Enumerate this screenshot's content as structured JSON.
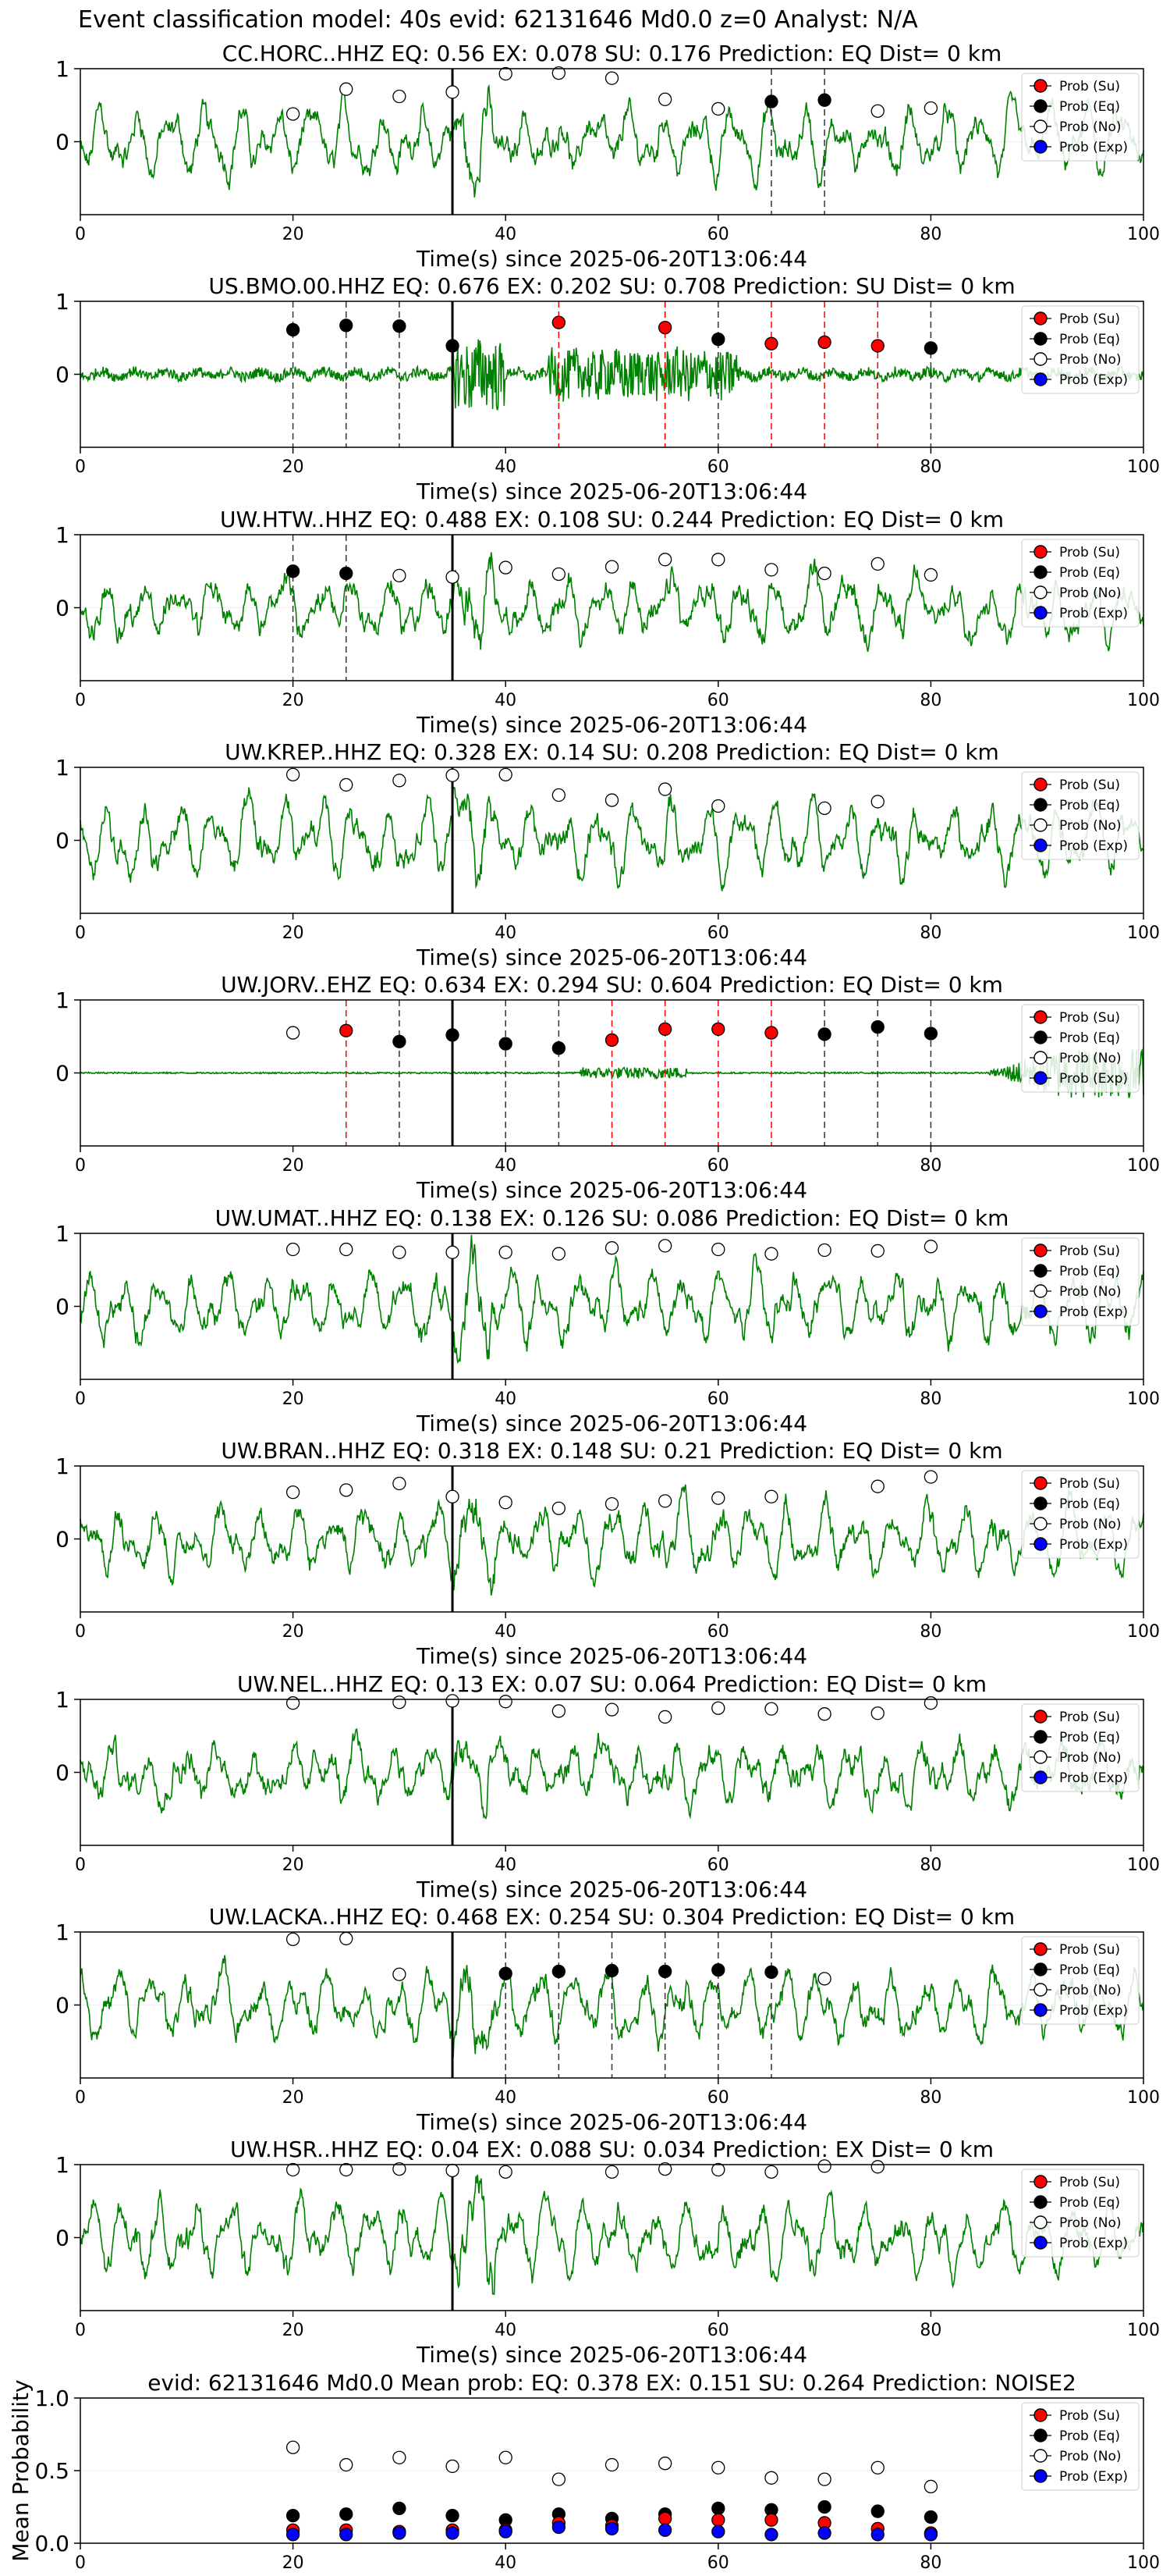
{
  "suptitle": "Event classification model: 40s evid: 62131646 Md0.0 z=0 Analyst: N/A",
  "xlabel": "Time(s) since 2025-06-20T13:06:44",
  "mean_ylabel": "Mean Probability",
  "legend": [
    "Prob (Su)",
    "Prob (Eq)",
    "Prob (No)",
    "Prob (Exp)"
  ],
  "colors": {
    "trace": "#008000",
    "su": "#ff0000",
    "eq": "#000000",
    "no": "#ffffff",
    "exp": "#0000ff",
    "eq_line": "#333333",
    "su_line": "#ff0000"
  },
  "chart_data": [
    {
      "type": "line",
      "title": "CC.HORC..HHZ   EQ: 0.56  EX: 0.078  SU: 0.176   Prediction: EQ    Dist= 0 km",
      "xlim": [
        0,
        100
      ],
      "ylim": [
        -1,
        1
      ],
      "yticks": [
        0,
        1
      ],
      "xticks": [
        0,
        20,
        40,
        60,
        80,
        100
      ],
      "arrival": 35,
      "style": "noise",
      "amp": 0.5,
      "eq_lines": [
        65,
        70
      ],
      "su_lines": [],
      "markers": [
        {
          "x": 20,
          "y": 0.38,
          "cls": "no"
        },
        {
          "x": 25,
          "y": 0.72,
          "cls": "no"
        },
        {
          "x": 30,
          "y": 0.62,
          "cls": "no"
        },
        {
          "x": 35,
          "y": 0.68,
          "cls": "no"
        },
        {
          "x": 40,
          "y": 0.93,
          "cls": "no"
        },
        {
          "x": 45,
          "y": 0.94,
          "cls": "no"
        },
        {
          "x": 50,
          "y": 0.87,
          "cls": "no"
        },
        {
          "x": 55,
          "y": 0.58,
          "cls": "no"
        },
        {
          "x": 60,
          "y": 0.45,
          "cls": "no"
        },
        {
          "x": 65,
          "y": 0.55,
          "cls": "eq"
        },
        {
          "x": 70,
          "y": 0.57,
          "cls": "eq"
        },
        {
          "x": 75,
          "y": 0.42,
          "cls": "no"
        },
        {
          "x": 80,
          "y": 0.46,
          "cls": "no"
        }
      ]
    },
    {
      "type": "line",
      "title": "US.BMO.00.HHZ   EQ: 0.676  EX: 0.202  SU: 0.708   Prediction: SU    Dist= 0 km",
      "xlim": [
        0,
        100
      ],
      "ylim": [
        -1,
        1
      ],
      "yticks": [
        0,
        1
      ],
      "xticks": [
        0,
        20,
        40,
        60,
        80,
        100
      ],
      "arrival": 35,
      "style": "quiet",
      "amp": 0.12,
      "eq_lines": [
        20,
        25,
        30,
        55,
        60,
        80
      ],
      "su_lines": [
        45,
        55,
        65,
        70,
        75
      ],
      "markers": [
        {
          "x": 20,
          "y": 0.61,
          "cls": "eq"
        },
        {
          "x": 25,
          "y": 0.67,
          "cls": "eq"
        },
        {
          "x": 30,
          "y": 0.66,
          "cls": "eq"
        },
        {
          "x": 35,
          "y": 0.39,
          "cls": "eq"
        },
        {
          "x": 45,
          "y": 0.71,
          "cls": "su"
        },
        {
          "x": 55,
          "y": 0.64,
          "cls": "su"
        },
        {
          "x": 60,
          "y": 0.48,
          "cls": "eq"
        },
        {
          "x": 65,
          "y": 0.42,
          "cls": "su"
        },
        {
          "x": 70,
          "y": 0.44,
          "cls": "su"
        },
        {
          "x": 75,
          "y": 0.39,
          "cls": "su"
        },
        {
          "x": 80,
          "y": 0.36,
          "cls": "eq"
        }
      ]
    },
    {
      "type": "line",
      "title": "UW.HTW..HHZ   EQ: 0.488  EX: 0.108  SU: 0.244   Prediction: EQ    Dist= 0 km",
      "xlim": [
        0,
        100
      ],
      "ylim": [
        -1,
        1
      ],
      "yticks": [
        0,
        1
      ],
      "xticks": [
        0,
        20,
        40,
        60,
        80,
        100
      ],
      "arrival": 35,
      "style": "noise",
      "amp": 0.45,
      "eq_lines": [
        20,
        25
      ],
      "su_lines": [],
      "markers": [
        {
          "x": 20,
          "y": 0.5,
          "cls": "eq"
        },
        {
          "x": 25,
          "y": 0.47,
          "cls": "eq"
        },
        {
          "x": 30,
          "y": 0.44,
          "cls": "no"
        },
        {
          "x": 35,
          "y": 0.42,
          "cls": "no"
        },
        {
          "x": 40,
          "y": 0.55,
          "cls": "no"
        },
        {
          "x": 45,
          "y": 0.46,
          "cls": "no"
        },
        {
          "x": 50,
          "y": 0.56,
          "cls": "no"
        },
        {
          "x": 55,
          "y": 0.66,
          "cls": "no"
        },
        {
          "x": 60,
          "y": 0.66,
          "cls": "no"
        },
        {
          "x": 65,
          "y": 0.52,
          "cls": "no"
        },
        {
          "x": 70,
          "y": 0.47,
          "cls": "no"
        },
        {
          "x": 75,
          "y": 0.6,
          "cls": "no"
        },
        {
          "x": 80,
          "y": 0.45,
          "cls": "no"
        }
      ]
    },
    {
      "type": "line",
      "title": "UW.KREP..HHZ   EQ: 0.328  EX: 0.14  SU: 0.208   Prediction: EQ    Dist= 0 km",
      "xlim": [
        0,
        100
      ],
      "ylim": [
        -1,
        1
      ],
      "yticks": [
        0,
        1
      ],
      "xticks": [
        0,
        20,
        40,
        60,
        80,
        100
      ],
      "arrival": 35,
      "style": "noise",
      "amp": 0.55,
      "eq_lines": [],
      "su_lines": [],
      "markers": [
        {
          "x": 20,
          "y": 0.9,
          "cls": "no"
        },
        {
          "x": 25,
          "y": 0.76,
          "cls": "no"
        },
        {
          "x": 30,
          "y": 0.82,
          "cls": "no"
        },
        {
          "x": 35,
          "y": 0.89,
          "cls": "no"
        },
        {
          "x": 40,
          "y": 0.9,
          "cls": "no"
        },
        {
          "x": 45,
          "y": 0.62,
          "cls": "no"
        },
        {
          "x": 50,
          "y": 0.55,
          "cls": "no"
        },
        {
          "x": 55,
          "y": 0.7,
          "cls": "no"
        },
        {
          "x": 60,
          "y": 0.47,
          "cls": "no"
        },
        {
          "x": 70,
          "y": 0.44,
          "cls": "no"
        },
        {
          "x": 75,
          "y": 0.53,
          "cls": "no"
        }
      ]
    },
    {
      "type": "line",
      "title": "UW.JORV..EHZ   EQ: 0.634  EX: 0.294  SU: 0.604   Prediction: EQ    Dist= 0 km",
      "xlim": [
        0,
        100
      ],
      "ylim": [
        -1,
        1
      ],
      "yticks": [
        0,
        1
      ],
      "xticks": [
        0,
        20,
        40,
        60,
        80,
        100
      ],
      "arrival": 35,
      "style": "flat",
      "amp": 0.02,
      "eq_lines": [
        30,
        40,
        45,
        70,
        75,
        80
      ],
      "su_lines": [
        25,
        50,
        55,
        60,
        65
      ],
      "markers": [
        {
          "x": 20,
          "y": 0.55,
          "cls": "no"
        },
        {
          "x": 25,
          "y": 0.58,
          "cls": "su"
        },
        {
          "x": 30,
          "y": 0.43,
          "cls": "eq"
        },
        {
          "x": 35,
          "y": 0.52,
          "cls": "eq"
        },
        {
          "x": 40,
          "y": 0.4,
          "cls": "eq"
        },
        {
          "x": 45,
          "y": 0.34,
          "cls": "eq"
        },
        {
          "x": 50,
          "y": 0.45,
          "cls": "su"
        },
        {
          "x": 55,
          "y": 0.6,
          "cls": "su"
        },
        {
          "x": 60,
          "y": 0.6,
          "cls": "su"
        },
        {
          "x": 65,
          "y": 0.55,
          "cls": "su"
        },
        {
          "x": 70,
          "y": 0.53,
          "cls": "eq"
        },
        {
          "x": 75,
          "y": 0.63,
          "cls": "eq"
        },
        {
          "x": 80,
          "y": 0.54,
          "cls": "eq"
        }
      ]
    },
    {
      "type": "line",
      "title": "UW.UMAT..HHZ   EQ: 0.138  EX: 0.126  SU: 0.086   Prediction: EQ    Dist= 0 km",
      "xlim": [
        0,
        100
      ],
      "ylim": [
        -1,
        1
      ],
      "yticks": [
        0,
        1
      ],
      "xticks": [
        0,
        20,
        40,
        60,
        80,
        100
      ],
      "arrival": 35,
      "style": "noise",
      "amp": 0.5,
      "eq_lines": [],
      "su_lines": [],
      "markers": [
        {
          "x": 20,
          "y": 0.78,
          "cls": "no"
        },
        {
          "x": 25,
          "y": 0.78,
          "cls": "no"
        },
        {
          "x": 30,
          "y": 0.74,
          "cls": "no"
        },
        {
          "x": 35,
          "y": 0.74,
          "cls": "no"
        },
        {
          "x": 40,
          "y": 0.74,
          "cls": "no"
        },
        {
          "x": 45,
          "y": 0.72,
          "cls": "no"
        },
        {
          "x": 50,
          "y": 0.8,
          "cls": "no"
        },
        {
          "x": 55,
          "y": 0.83,
          "cls": "no"
        },
        {
          "x": 60,
          "y": 0.78,
          "cls": "no"
        },
        {
          "x": 65,
          "y": 0.72,
          "cls": "no"
        },
        {
          "x": 70,
          "y": 0.77,
          "cls": "no"
        },
        {
          "x": 75,
          "y": 0.76,
          "cls": "no"
        },
        {
          "x": 80,
          "y": 0.82,
          "cls": "no"
        }
      ]
    },
    {
      "type": "line",
      "title": "UW.BRAN..HHZ   EQ: 0.318  EX: 0.148  SU: 0.21   Prediction: EQ    Dist= 0 km",
      "xlim": [
        0,
        100
      ],
      "ylim": [
        -1,
        1
      ],
      "yticks": [
        0,
        1
      ],
      "xticks": [
        0,
        20,
        40,
        60,
        80,
        100
      ],
      "arrival": 35,
      "style": "noise",
      "amp": 0.5,
      "eq_lines": [],
      "su_lines": [],
      "markers": [
        {
          "x": 20,
          "y": 0.64,
          "cls": "no"
        },
        {
          "x": 25,
          "y": 0.67,
          "cls": "no"
        },
        {
          "x": 30,
          "y": 0.76,
          "cls": "no"
        },
        {
          "x": 35,
          "y": 0.58,
          "cls": "no"
        },
        {
          "x": 40,
          "y": 0.5,
          "cls": "no"
        },
        {
          "x": 45,
          "y": 0.42,
          "cls": "no"
        },
        {
          "x": 50,
          "y": 0.48,
          "cls": "no"
        },
        {
          "x": 55,
          "y": 0.52,
          "cls": "no"
        },
        {
          "x": 60,
          "y": 0.56,
          "cls": "no"
        },
        {
          "x": 65,
          "y": 0.58,
          "cls": "no"
        },
        {
          "x": 75,
          "y": 0.72,
          "cls": "no"
        },
        {
          "x": 80,
          "y": 0.85,
          "cls": "no"
        }
      ]
    },
    {
      "type": "line",
      "title": "UW.NEL..HHZ   EQ: 0.13  EX: 0.07  SU: 0.064   Prediction: EQ    Dist= 0 km",
      "xlim": [
        0,
        100
      ],
      "ylim": [
        -1,
        1
      ],
      "yticks": [
        0,
        1
      ],
      "xticks": [
        0,
        20,
        40,
        60,
        80,
        100
      ],
      "arrival": 35,
      "style": "noise",
      "amp": 0.42,
      "eq_lines": [],
      "su_lines": [],
      "markers": [
        {
          "x": 20,
          "y": 0.95,
          "cls": "no"
        },
        {
          "x": 30,
          "y": 0.96,
          "cls": "no"
        },
        {
          "x": 35,
          "y": 0.98,
          "cls": "no"
        },
        {
          "x": 40,
          "y": 0.97,
          "cls": "no"
        },
        {
          "x": 45,
          "y": 0.84,
          "cls": "no"
        },
        {
          "x": 50,
          "y": 0.86,
          "cls": "no"
        },
        {
          "x": 55,
          "y": 0.76,
          "cls": "no"
        },
        {
          "x": 60,
          "y": 0.88,
          "cls": "no"
        },
        {
          "x": 65,
          "y": 0.87,
          "cls": "no"
        },
        {
          "x": 70,
          "y": 0.8,
          "cls": "no"
        },
        {
          "x": 75,
          "y": 0.81,
          "cls": "no"
        },
        {
          "x": 80,
          "y": 0.95,
          "cls": "no"
        }
      ]
    },
    {
      "type": "line",
      "title": "UW.LACKA..HHZ   EQ: 0.468  EX: 0.254  SU: 0.304   Prediction: EQ    Dist= 0 km",
      "xlim": [
        0,
        100
      ],
      "ylim": [
        -1,
        1
      ],
      "yticks": [
        0,
        1
      ],
      "xticks": [
        0,
        20,
        40,
        60,
        80,
        100
      ],
      "arrival": 35,
      "style": "noise",
      "amp": 0.5,
      "eq_lines": [
        40,
        45,
        50,
        55,
        60,
        65
      ],
      "su_lines": [],
      "markers": [
        {
          "x": 20,
          "y": 0.9,
          "cls": "no"
        },
        {
          "x": 25,
          "y": 0.91,
          "cls": "no"
        },
        {
          "x": 30,
          "y": 0.42,
          "cls": "no"
        },
        {
          "x": 40,
          "y": 0.43,
          "cls": "eq"
        },
        {
          "x": 45,
          "y": 0.46,
          "cls": "eq"
        },
        {
          "x": 50,
          "y": 0.47,
          "cls": "eq"
        },
        {
          "x": 55,
          "y": 0.46,
          "cls": "eq"
        },
        {
          "x": 60,
          "y": 0.48,
          "cls": "eq"
        },
        {
          "x": 65,
          "y": 0.45,
          "cls": "eq"
        },
        {
          "x": 70,
          "y": 0.36,
          "cls": "no"
        }
      ]
    },
    {
      "type": "line",
      "title": "UW.HSR..HHZ   EQ: 0.04  EX: 0.088  SU: 0.034   Prediction: EX    Dist= 0 km",
      "xlim": [
        0,
        100
      ],
      "ylim": [
        -1,
        1
      ],
      "yticks": [
        0,
        1
      ],
      "xticks": [
        0,
        20,
        40,
        60,
        80,
        100
      ],
      "arrival": 35,
      "style": "noise",
      "amp": 0.55,
      "eq_lines": [],
      "su_lines": [],
      "markers": [
        {
          "x": 20,
          "y": 0.93,
          "cls": "no"
        },
        {
          "x": 25,
          "y": 0.93,
          "cls": "no"
        },
        {
          "x": 30,
          "y": 0.94,
          "cls": "no"
        },
        {
          "x": 35,
          "y": 0.92,
          "cls": "no"
        },
        {
          "x": 40,
          "y": 0.9,
          "cls": "no"
        },
        {
          "x": 50,
          "y": 0.9,
          "cls": "no"
        },
        {
          "x": 55,
          "y": 0.94,
          "cls": "no"
        },
        {
          "x": 60,
          "y": 0.93,
          "cls": "no"
        },
        {
          "x": 65,
          "y": 0.9,
          "cls": "no"
        },
        {
          "x": 70,
          "y": 0.98,
          "cls": "no"
        },
        {
          "x": 75,
          "y": 0.97,
          "cls": "no"
        }
      ]
    },
    {
      "type": "scatter",
      "title": "evid: 62131646  Md0.0   Mean prob:   EQ: 0.378  EX: 0.151  SU: 0.264   Prediction: NOISE2",
      "xlim": [
        0,
        100
      ],
      "ylim": [
        0,
        1
      ],
      "yticks": [
        0,
        0.5,
        1
      ],
      "ytick_labels": [
        "0.0",
        "0.5",
        "1.0"
      ],
      "xticks": [
        0,
        20,
        40,
        60,
        80,
        100
      ],
      "x": [
        20,
        25,
        30,
        35,
        40,
        45,
        50,
        55,
        60,
        65,
        70,
        75,
        80
      ],
      "series": [
        {
          "name": "Prob (Su)",
          "cls": "su",
          "values": [
            0.09,
            0.09,
            0.08,
            0.09,
            0.09,
            0.14,
            0.12,
            0.17,
            0.16,
            0.16,
            0.14,
            0.1,
            0.07
          ]
        },
        {
          "name": "Prob (Eq)",
          "cls": "eq",
          "values": [
            0.19,
            0.2,
            0.24,
            0.19,
            0.16,
            0.2,
            0.17,
            0.2,
            0.24,
            0.23,
            0.25,
            0.22,
            0.18
          ]
        },
        {
          "name": "Prob (No)",
          "cls": "no",
          "values": [
            0.66,
            0.54,
            0.59,
            0.53,
            0.59,
            0.44,
            0.54,
            0.55,
            0.52,
            0.45,
            0.44,
            0.52,
            0.39
          ]
        },
        {
          "name": "Prob (Exp)",
          "cls": "exp",
          "values": [
            0.06,
            0.06,
            0.07,
            0.07,
            0.08,
            0.11,
            0.1,
            0.09,
            0.08,
            0.06,
            0.07,
            0.06,
            0.06
          ]
        }
      ]
    }
  ]
}
